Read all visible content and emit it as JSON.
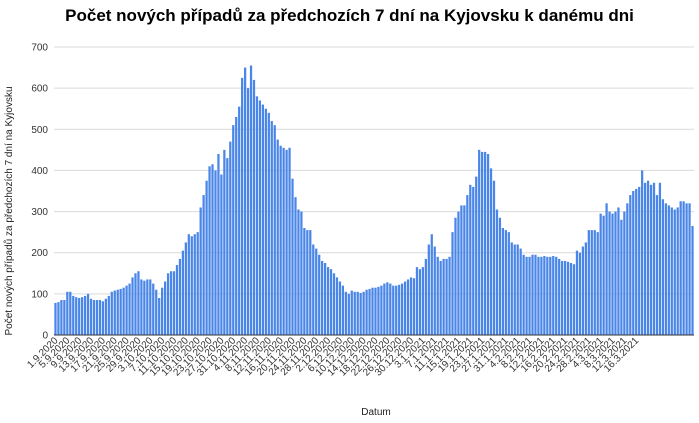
{
  "chart_data": {
    "type": "bar",
    "title": "Počet nových případů za předchozích 7 dní na Kyjovsku k danému dni",
    "xlabel": "Datum",
    "ylabel": "Počet nových případů za předchozích 7 dní na Kyjovsku",
    "ylim": [
      0,
      700
    ],
    "yticks": [
      0,
      100,
      200,
      300,
      400,
      500,
      600,
      700
    ],
    "grid": true,
    "legend": "none",
    "bar_color": "#4a86e8",
    "start_date": "2020-09-01",
    "xtick_labels": [
      "1.9.2020",
      "5.9.2020",
      "9.9.2020",
      "13.9.2020",
      "17.9.2020",
      "21.9.2020",
      "25.9.2020",
      "29.9.2020",
      "3.10.2020",
      "7.10.2020",
      "11.10.2020",
      "15.10.2020",
      "19.10.2020",
      "23.10.2020",
      "27.10.2020",
      "31.10.2020",
      "4.11.2020",
      "8.11.2020",
      "12.11.2020",
      "16.11.2020",
      "20.11.2020",
      "24.11.2020",
      "28.11.2020",
      "2.12.2020",
      "6.12.2020",
      "10.12.2020",
      "14.12.2020",
      "18.12.2020",
      "22.12.2020",
      "26.12.2020",
      "30.12.2020",
      "3.1.2021",
      "7.1.2021",
      "11.1.2021",
      "15.1.2021",
      "19.1.2021",
      "23.1.2021",
      "27.1.2021",
      "31.1.2021",
      "4.2.2021",
      "8.2.2021",
      "12.2.2021",
      "16.2.2021",
      "20.2.2021",
      "24.2.2021",
      "28.2.2021",
      "4.3.2021",
      "8.3.2021",
      "12.3.2021",
      "16.3.2021"
    ],
    "values": [
      78,
      80,
      85,
      85,
      105,
      105,
      95,
      92,
      90,
      92,
      95,
      100,
      88,
      85,
      85,
      85,
      82,
      88,
      95,
      105,
      108,
      110,
      112,
      115,
      120,
      125,
      140,
      150,
      155,
      135,
      132,
      135,
      135,
      125,
      110,
      90,
      115,
      130,
      150,
      155,
      155,
      170,
      185,
      205,
      225,
      245,
      240,
      245,
      250,
      310,
      340,
      375,
      410,
      415,
      400,
      440,
      390,
      450,
      430,
      470,
      510,
      530,
      555,
      625,
      650,
      600,
      655,
      620,
      580,
      570,
      560,
      550,
      540,
      520,
      510,
      475,
      460,
      455,
      450,
      455,
      380,
      335,
      305,
      300,
      260,
      255,
      255,
      220,
      210,
      195,
      180,
      175,
      165,
      160,
      150,
      140,
      130,
      120,
      105,
      100,
      108,
      105,
      105,
      102,
      105,
      110,
      112,
      115,
      115,
      117,
      120,
      125,
      128,
      125,
      120,
      120,
      122,
      125,
      130,
      135,
      140,
      138,
      165,
      160,
      165,
      185,
      220,
      245,
      215,
      190,
      180,
      185,
      185,
      190,
      250,
      285,
      300,
      315,
      315,
      340,
      365,
      360,
      385,
      450,
      445,
      445,
      440,
      405,
      375,
      305,
      285,
      260,
      255,
      250,
      225,
      220,
      220,
      210,
      195,
      190,
      190,
      195,
      195,
      190,
      190,
      192,
      190,
      190,
      192,
      190,
      185,
      180,
      180,
      178,
      175,
      172,
      205,
      200,
      215,
      225,
      255,
      255,
      255,
      250,
      295,
      290,
      320,
      300,
      295,
      300,
      310,
      280,
      300,
      320,
      340,
      350,
      355,
      360,
      400,
      370,
      375,
      365,
      370,
      340,
      370,
      330,
      320,
      315,
      310,
      305,
      310,
      325,
      325,
      320,
      320,
      265
    ]
  }
}
